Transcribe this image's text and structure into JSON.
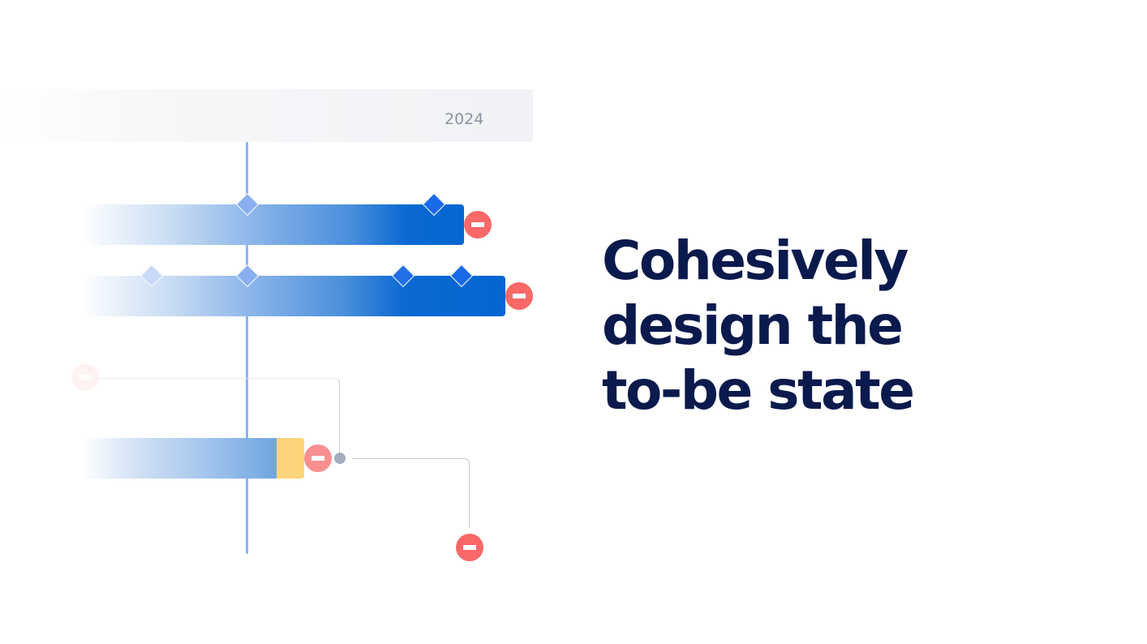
{
  "timeline": {
    "year_label": "2024",
    "colors": {
      "today_line": "#8ab4f8",
      "bar_end": "#0366d2",
      "at_risk_segment": "#fdd47a",
      "remove_icon": "#fa6868",
      "dependency_dot": "#a3adbf"
    }
  },
  "headline": {
    "lines": [
      "Cohesively",
      "design the",
      "to-be state"
    ],
    "color": "#0a1a4d"
  }
}
